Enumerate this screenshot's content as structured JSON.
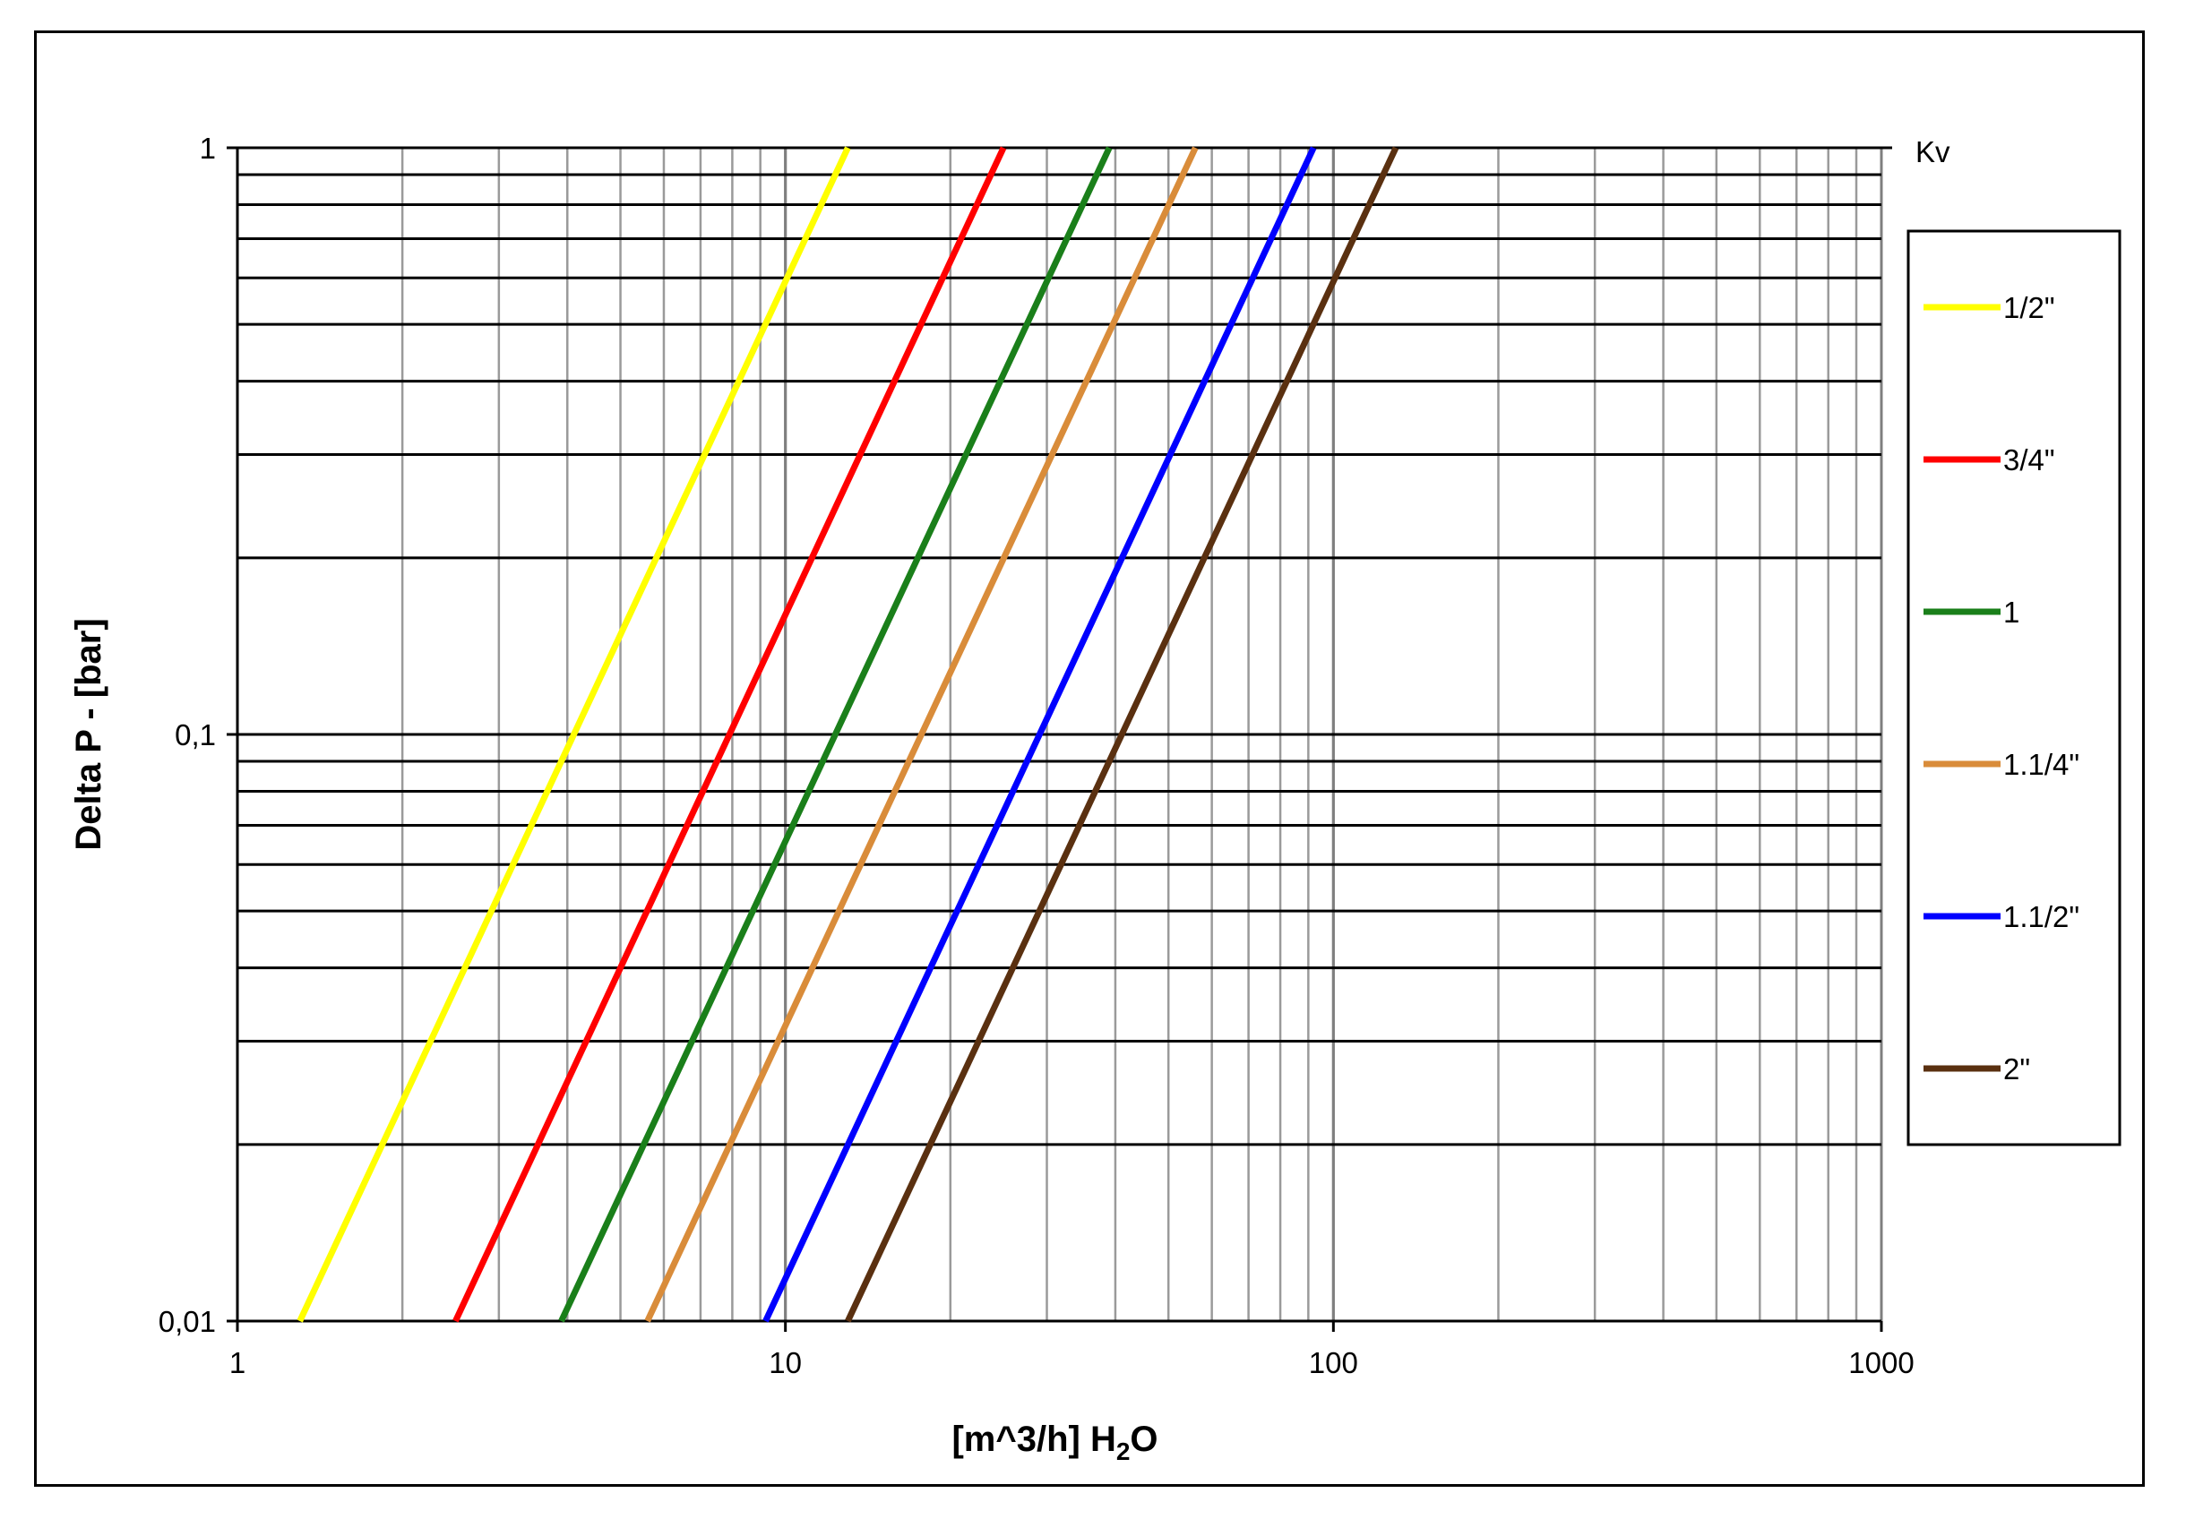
{
  "chart_data": {
    "type": "line",
    "x_scale": "log",
    "y_scale": "log",
    "xlim": [
      1,
      1000
    ],
    "ylim": [
      0.01,
      1
    ],
    "xlabel": "[m^3/h] H2O",
    "xlabel_parts": {
      "main": "[m^3/h] H",
      "sub": "2",
      "tail": "O"
    },
    "ylabel": "Delta P - [bar]",
    "x_tick_labels": [
      "1",
      "10",
      "100",
      "1000"
    ],
    "y_tick_labels": [
      "0,01",
      "0,1",
      "1"
    ],
    "legend_title": "Kv",
    "legend_position": "right",
    "grid": true,
    "series": [
      {
        "name": "1/2\"",
        "color": "#ffff00",
        "x": [
          1.3,
          13
        ],
        "y": [
          0.01,
          1
        ]
      },
      {
        "name": "3/4\"",
        "color": "#ff0000",
        "x": [
          2.5,
          25
        ],
        "y": [
          0.01,
          1
        ]
      },
      {
        "name": "1",
        "color": "#1a7f1a",
        "x": [
          3.9,
          39
        ],
        "y": [
          0.01,
          1
        ]
      },
      {
        "name": "1.1/4\"",
        "color": "#d98c3a",
        "x": [
          5.6,
          56
        ],
        "y": [
          0.01,
          1
        ]
      },
      {
        "name": "1.1/2\"",
        "color": "#0000ff",
        "x": [
          9.2,
          92
        ],
        "y": [
          0.01,
          1
        ]
      },
      {
        "name": "2\"",
        "color": "#5a3010",
        "x": [
          13,
          130
        ],
        "y": [
          0.01,
          1
        ]
      }
    ]
  }
}
